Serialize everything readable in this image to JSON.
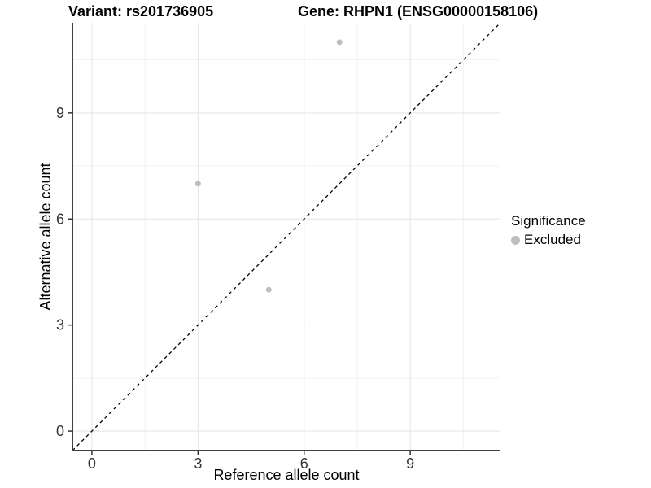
{
  "titles": {
    "variant": "Variant: rs201736905",
    "gene": "Gene: RHPN1 (ENSG00000158106)"
  },
  "legend": {
    "title": "Significance",
    "entries": [
      {
        "label": "Excluded",
        "color": "#bebebe"
      }
    ]
  },
  "chart_data": {
    "type": "scatter",
    "title": "Variant: rs201736905    Gene: RHPN1 (ENSG00000158106)",
    "xlabel": "Reference allele count",
    "ylabel": "Alternative allele count",
    "xlim": [
      -0.55,
      11.55
    ],
    "ylim": [
      -0.55,
      11.55
    ],
    "x_ticks": [
      0,
      3,
      6,
      9
    ],
    "y_ticks": [
      0,
      3,
      6,
      9
    ],
    "x_minor_ticks": [
      1.5,
      4.5,
      7.5,
      10.5
    ],
    "y_minor_ticks": [
      1.5,
      4.5,
      7.5,
      10.5
    ],
    "grid": true,
    "legend_position": "right",
    "legend_title": "Significance",
    "series": [
      {
        "name": "Excluded",
        "color": "#bebebe",
        "points": [
          {
            "x": 7,
            "y": 11
          },
          {
            "x": 3,
            "y": 7
          },
          {
            "x": 5,
            "y": 4
          }
        ]
      }
    ],
    "reference_line": {
      "type": "identity",
      "style": "dashed",
      "color": "#000000"
    },
    "style_colors": {
      "axis_line": "#404040",
      "tick_mark": "#333333",
      "tick_label": "#333333",
      "grid_major": "#e4e4e4",
      "grid_minor": "#f2f2f2",
      "background": "#ffffff"
    }
  }
}
